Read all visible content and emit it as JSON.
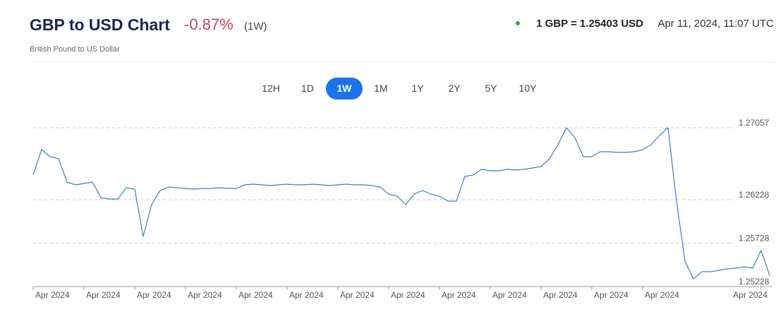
{
  "header": {
    "title": "GBP to USD Chart",
    "change": "-0.87%",
    "period": "(1W)",
    "subtitle": "British Pound to US Dollar",
    "rate": "1 GBP = 1.25403 USD",
    "timestamp": "Apr 11, 2024, 11:07 UTC",
    "ranges": [
      "12H",
      "1D",
      "1W",
      "1M",
      "1Y",
      "2Y",
      "5Y",
      "10Y"
    ],
    "active_range": "1W"
  },
  "chart_data": {
    "type": "line",
    "color": "#3a7fc8",
    "x": [
      0,
      2,
      4,
      6,
      8,
      10,
      12,
      14,
      16,
      18,
      20,
      22,
      24,
      26,
      28,
      30,
      32,
      34,
      36,
      38,
      40,
      42,
      44,
      46,
      48,
      50,
      52,
      54,
      56,
      58,
      60,
      62,
      64,
      66,
      68,
      70,
      72,
      74,
      76,
      78,
      80,
      82,
      84,
      86,
      88,
      90,
      92,
      94,
      96,
      98,
      100,
      102,
      104,
      106,
      108,
      110,
      112,
      114,
      116,
      118,
      120,
      122,
      124,
      126,
      128,
      130,
      132,
      134,
      136,
      138,
      140,
      142,
      144,
      146,
      148,
      150,
      152,
      154,
      156,
      158,
      160,
      162,
      164,
      166,
      168,
      170,
      172,
      174
    ],
    "values": [
      1.26513,
      1.26805,
      1.26724,
      1.267,
      1.26431,
      1.26399,
      1.26415,
      1.26431,
      1.26252,
      1.26236,
      1.26236,
      1.26366,
      1.2635,
      1.25805,
      1.26171,
      1.26334,
      1.26374,
      1.26366,
      1.26358,
      1.2635,
      1.26358,
      1.26358,
      1.26366,
      1.26358,
      1.26358,
      1.26399,
      1.26407,
      1.26399,
      1.26391,
      1.26399,
      1.26407,
      1.26399,
      1.26399,
      1.26407,
      1.26399,
      1.26391,
      1.26399,
      1.26407,
      1.26399,
      1.26399,
      1.26391,
      1.26374,
      1.26293,
      1.26269,
      1.26171,
      1.26293,
      1.26334,
      1.26293,
      1.26269,
      1.26212,
      1.26212,
      1.26496,
      1.26513,
      1.26578,
      1.26561,
      1.26561,
      1.26578,
      1.2657,
      1.26578,
      1.26594,
      1.2661,
      1.267,
      1.26862,
      1.27057,
      1.26943,
      1.26724,
      1.26724,
      1.26781,
      1.26781,
      1.26773,
      1.26773,
      1.26781,
      1.26805,
      1.26862,
      1.26968,
      1.27057,
      1.26212,
      1.25521,
      1.25317,
      1.25399,
      1.25399,
      1.25415,
      1.25431,
      1.25439,
      1.25456,
      1.25439,
      1.25643,
      1.25358
    ],
    "xlim": [
      0,
      174
    ],
    "xticks": [
      {
        "value": 0,
        "label": "Apr 2024"
      },
      {
        "value": 12,
        "label": "Apr 2024"
      },
      {
        "value": 24,
        "label": "Apr 2024"
      },
      {
        "value": 36,
        "label": "Apr 2024"
      },
      {
        "value": 48,
        "label": "Apr 2024"
      },
      {
        "value": 60,
        "label": "Apr 2024"
      },
      {
        "value": 72,
        "label": "Apr 2024"
      },
      {
        "value": 84,
        "label": "Apr 2024"
      },
      {
        "value": 96,
        "label": "Apr 2024"
      },
      {
        "value": 108,
        "label": "Apr 2024"
      },
      {
        "value": 120,
        "label": "Apr 2024"
      },
      {
        "value": 132,
        "label": "Apr 2024"
      },
      {
        "value": 144,
        "label": "Apr 2024"
      },
      {
        "value": 172,
        "label": "Apr 2024"
      }
    ],
    "ylim": [
      1.25228,
      1.27057
    ],
    "yticks": [
      1.25228,
      1.25728,
      1.26228,
      1.27057
    ],
    "grid": true
  }
}
